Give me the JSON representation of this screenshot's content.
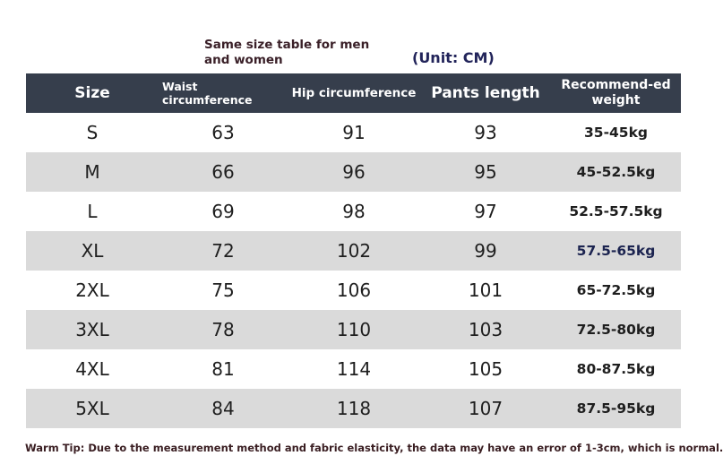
{
  "caption": "Same size table for men and women",
  "unit": "(Unit: CM)",
  "headers": {
    "size": "Size",
    "waist": "Waist circumference",
    "hip": "Hip circumference",
    "length": "Pants length",
    "weight": "Recommend-ed weight"
  },
  "rows": [
    {
      "size": "S",
      "waist": "63",
      "hip": "91",
      "length": "93",
      "weight": "35-45kg"
    },
    {
      "size": "M",
      "waist": "66",
      "hip": "96",
      "length": "95",
      "weight": "45-52.5kg"
    },
    {
      "size": "L",
      "waist": "69",
      "hip": "98",
      "length": "97",
      "weight": "52.5-57.5kg"
    },
    {
      "size": "XL",
      "waist": "72",
      "hip": "102",
      "length": "99",
      "weight": "57.5-65kg"
    },
    {
      "size": "2XL",
      "waist": "75",
      "hip": "106",
      "length": "101",
      "weight": "65-72.5kg"
    },
    {
      "size": "3XL",
      "waist": "78",
      "hip": "110",
      "length": "103",
      "weight": "72.5-80kg"
    },
    {
      "size": "4XL",
      "waist": "81",
      "hip": "114",
      "length": "105",
      "weight": "80-87.5kg"
    },
    {
      "size": "5XL",
      "waist": "84",
      "hip": "118",
      "length": "107",
      "weight": "87.5-95kg"
    }
  ],
  "tip": "Warm Tip: Due to the measurement method and fabric elasticity, the data may have an error of 1-3cm, which is normal.",
  "colors": {
    "header_bg": "#363e4c",
    "alt_row_bg": "#dadada"
  }
}
